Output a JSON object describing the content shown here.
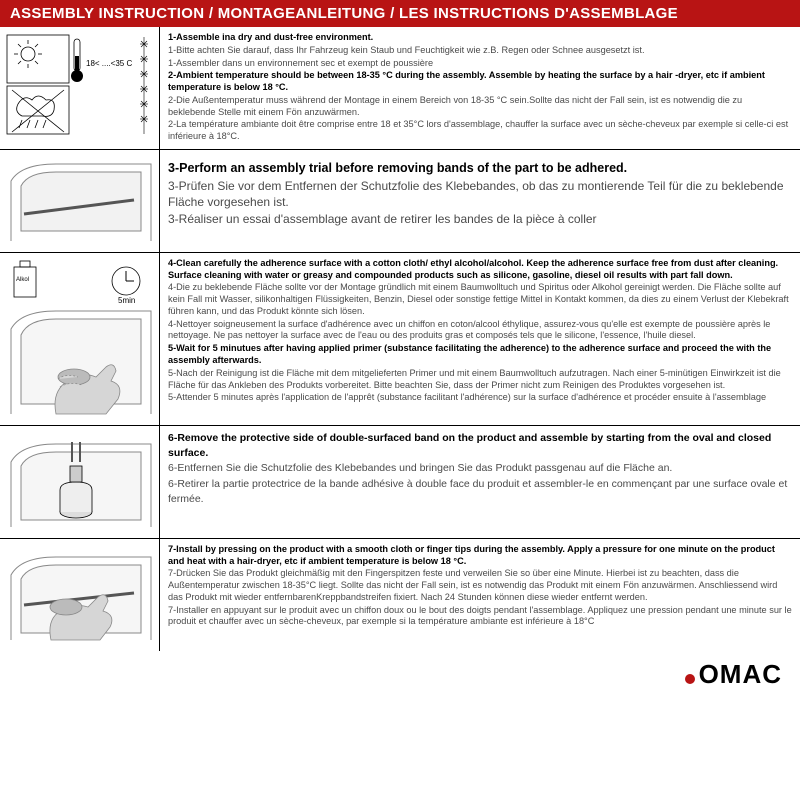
{
  "colors": {
    "header_bg": "#b81414",
    "header_text": "#ffffff",
    "border": "#000000",
    "text_muted": "#4a4a4a",
    "text_bold": "#000000",
    "logo_accent": "#b81414"
  },
  "header": "ASSEMBLY INSTRUCTION / MONTAGEANLEITUNG / LES INSTRUCTIONS D'ASSEMBLAGE",
  "sections": [
    {
      "lines": [
        {
          "b": true,
          "t": "1-Assemble ina dry and dust-free environment."
        },
        {
          "b": false,
          "t": "1-Bitte achten Sie darauf, dass Ihr Fahrzeug kein Staub und Feuchtigkeit wie z.B. Regen oder Schnee ausgesetzt ist."
        },
        {
          "b": false,
          "t": "1-Assembler dans un environnement sec et exempt de poussière"
        },
        {
          "b": false,
          "t": " "
        },
        {
          "b": true,
          "t": "2-Ambient temperature should be between 18-35 °C  during the assembly. Assemble by heating the surface by a hair -dryer, etc if ambient temperature is below 18 °C."
        },
        {
          "b": false,
          "t": "2-Die Außentemperatur muss während der Montage in einem Bereich von 18-35 °C  sein.Sollte das nicht der Fall sein, ist es notwendig die zu beklebende Stelle mit einem Fön anzuwärmen."
        },
        {
          "b": false,
          "t": "2-La température ambiante doit être comprise entre 18 et 35°C lors d'assemblage, chauffer la surface avec un sèche-cheveux par exemple si celle-ci est inférieure à 18°C."
        }
      ],
      "icon_labels": {
        "temp": "18< ....<35 C"
      }
    },
    {
      "lines": [
        {
          "b": true,
          "t": "3-Perform an assembly trial before removing bands of the part to be adhered."
        },
        {
          "b": false,
          "t": "3-Prüfen Sie vor dem Entfernen der Schutzfolie des Klebebandes, ob das zu montierende Teil für die zu beklebende Fläche vorgesehen ist."
        },
        {
          "b": false,
          "t": "3-Réaliser un essai d'assemblage avant de retirer les bandes de la pièce à coller"
        }
      ]
    },
    {
      "lines": [
        {
          "b": true,
          "t": "4-Clean carefully the adherence surface with a cotton cloth/ ethyl alcohol/alcohol. Keep the adherence surface free from dust after cleaning. Surface cleaning with water or greasy and compounded products such as silicone, gasoline, diesel oil results with part fall down."
        },
        {
          "b": false,
          "t": "4-Die zu beklebende Fläche sollte vor der Montage gründlich mit einem Baumwolltuch und Spiritus oder Alkohol gereinigt werden. Die Fläche sollte auf kein Fall mit Wasser, silikonhaltigen Flüssigkeiten, Benzin, Diesel oder sonstige fettige Mittel in Kontakt kommen, da dies zu einem Verlust der Klebekraft führen kann, und das Produkt könnte sich lösen."
        },
        {
          "b": false,
          "t": "4-Nettoyer soigneusement la surface d'adhérence avec un chiffon en coton/alcool éthylique, assurez-vous qu'elle est exempte de poussière après le nettoyage. Ne pas nettoyer la surface avec de l'eau ou des produits gras et composés tels que le silicone, l'essence, l'huile diesel."
        },
        {
          "b": false,
          "t": " "
        },
        {
          "b": true,
          "t": "5-Wait for 5 minutues after having applied primer (substance facilitating the adherence) to the adherence surface and proceed the with the assembly afterwards."
        },
        {
          "b": false,
          "t": "5-Nach der Reinigung ist die Fläche mit dem mitgelieferten Primer und mit einem Baumwolltuch aufzutragen. Nach einer 5-minütigen Einwirkzeit ist die Fläche für das Ankleben des Produkts vorbereitet. Bitte beachten Sie, dass der Primer nicht zum Reinigen des Produktes vorgesehen ist."
        },
        {
          "b": false,
          "t": "5-Attender 5 minutes après l'application de l'apprêt (substance facilitant l'adhérence) sur la surface d'adhérence et procéder ensuite à l'assemblage"
        }
      ],
      "icon_labels": {
        "bottle": "Alkol",
        "timer": "5min"
      }
    },
    {
      "lines": [
        {
          "b": true,
          "t": "6-Remove the protective side of double-surfaced band on the product and assemble by starting from the oval and closed surface."
        },
        {
          "b": false,
          "t": "6-Entfernen Sie die Schutzfolie des Klebebandes und bringen Sie das Produkt passgenau auf die Fläche an."
        },
        {
          "b": false,
          "t": "6-Retirer la partie protectrice de la bande adhésive à double face du produit et assembler-le en commençant par une surface ovale et fermée."
        }
      ]
    },
    {
      "lines": [
        {
          "b": true,
          "t": "7-Install by pressing on the product with a smooth cloth or finger tips during the assembly. Apply a pressure for one minute on the product and heat with a hair-dryer, etc if ambient temperature is below 18 °C."
        },
        {
          "b": false,
          "t": "7-Drücken Sie das Produkt gleichmäßig mit den Fingerspitzen feste und verweilen Sie so über eine Minute. Hierbei ist zu beachten, dass die Außentemperatur zwischen 18-35°C liegt. Sollte das nicht der Fall sein, ist es notwendig das Produkt mit einem Fön anzuwärmen. Anschliessend wird das Produkt mit wieder entfernbarenKreppbandstreifen fixiert. Nach 24 Stunden können diese wieder entfernt werden."
        },
        {
          "b": false,
          "t": "7-Installer en appuyant sur le produit avec un chiffon doux ou le bout des doigts pendant l'assemblage. Appliquez une pression pendant une minute sur le produit et chauffer avec un sèche-cheveux, par exemple si la température ambiante est inférieure à 18°C"
        }
      ]
    }
  ],
  "logo": "OMAC"
}
